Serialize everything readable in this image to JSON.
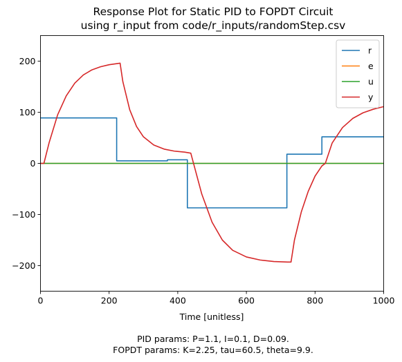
{
  "chart_data": {
    "type": "line",
    "title": "Response Plot for Static PID to FOPDT Circuit",
    "subtitle": "using r_input from code/r_inputs/randomStep.csv",
    "xlabel": "Time [unitless]",
    "ylabel": "",
    "xlim": [
      0,
      1000
    ],
    "ylim": [
      -250,
      250
    ],
    "xticks": [
      0,
      200,
      400,
      600,
      800,
      1000
    ],
    "yticks": [
      -200,
      -100,
      0,
      100,
      200
    ],
    "xtick_labels": [
      "0",
      "200",
      "400",
      "600",
      "800",
      "1000"
    ],
    "ytick_labels": [
      "−200",
      "−100",
      "0",
      "100",
      "200"
    ],
    "grid": false,
    "legend_position": "top-right",
    "series": [
      {
        "name": "r",
        "color": "#1f77b4",
        "x": [
          0,
          222,
          222,
          370,
          370,
          428,
          428,
          718,
          718,
          820,
          820,
          1000
        ],
        "y": [
          89,
          89,
          5,
          5,
          7,
          7,
          -87,
          -87,
          18,
          18,
          52,
          52
        ]
      },
      {
        "name": "e",
        "color": "#ff7f0e",
        "x": [
          0,
          1000
        ],
        "y": [
          0,
          0
        ]
      },
      {
        "name": "u",
        "color": "#2ca02c",
        "x": [
          0,
          1000
        ],
        "y": [
          0,
          0
        ]
      },
      {
        "name": "y",
        "color": "#d62728",
        "x": [
          0,
          10,
          25,
          50,
          75,
          100,
          125,
          150,
          175,
          200,
          232,
          240,
          260,
          280,
          300,
          330,
          360,
          390,
          420,
          438,
          450,
          470,
          500,
          530,
          560,
          600,
          640,
          680,
          720,
          730,
          740,
          760,
          780,
          800,
          820,
          830,
          850,
          880,
          910,
          940,
          970,
          1000
        ],
        "y": [
          0,
          0,
          40,
          95,
          132,
          157,
          173,
          183,
          189,
          193,
          196,
          160,
          105,
          72,
          52,
          36,
          28,
          24,
          22,
          20,
          -10,
          -60,
          -115,
          -150,
          -170,
          -183,
          -189,
          -192,
          -193,
          -193,
          -150,
          -95,
          -55,
          -25,
          -5,
          0,
          40,
          70,
          88,
          99,
          106,
          111
        ]
      }
    ],
    "footer": {
      "line1": "PID params: P=1.1, I=0.1, D=0.09.",
      "line2": "FOPDT params: K=2.25, tau=60.5, theta=9.9."
    }
  }
}
